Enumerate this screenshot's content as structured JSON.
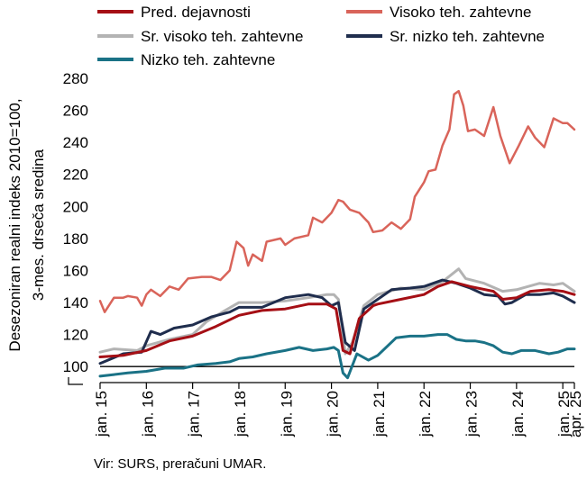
{
  "chart_data": {
    "type": "line",
    "ylabel_lines": [
      "Desezoniran realni indeks 2010=100,",
      "3-mes. drseča sredina"
    ],
    "ylim": [
      90,
      280
    ],
    "yticks": [
      100,
      120,
      140,
      160,
      180,
      200,
      220,
      240,
      260,
      280
    ],
    "x_start": 2015.0,
    "x_end": 2025.25,
    "xticks": [
      {
        "t": 2015,
        "label": "jan. 15"
      },
      {
        "t": 2016,
        "label": "jan. 16"
      },
      {
        "t": 2017,
        "label": "jan. 17"
      },
      {
        "t": 2018,
        "label": "jan. 18"
      },
      {
        "t": 2019,
        "label": "jan. 19"
      },
      {
        "t": 2020,
        "label": "jan. 20"
      },
      {
        "t": 2021,
        "label": "jan. 21"
      },
      {
        "t": 2022,
        "label": "jan. 22"
      },
      {
        "t": 2023,
        "label": "jan. 23"
      },
      {
        "t": 2024,
        "label": "jan. 24"
      },
      {
        "t": 2025,
        "label": "jan. 25"
      },
      {
        "t": 2025.25,
        "label": "apr. 25"
      }
    ],
    "reference_line": 100,
    "legend_position": "top",
    "series": [
      {
        "name": "Pred. dejavnosti",
        "color": "#a50f15",
        "width": 3,
        "points": [
          [
            2015.0,
            106
          ],
          [
            2015.5,
            107
          ],
          [
            2016.0,
            110
          ],
          [
            2016.5,
            116
          ],
          [
            2017.0,
            119
          ],
          [
            2017.5,
            125
          ],
          [
            2018.0,
            132
          ],
          [
            2018.5,
            135
          ],
          [
            2019.0,
            136
          ],
          [
            2019.5,
            139
          ],
          [
            2019.9,
            139
          ],
          [
            2020.1,
            136
          ],
          [
            2020.25,
            110
          ],
          [
            2020.4,
            108
          ],
          [
            2020.6,
            130
          ],
          [
            2020.9,
            138
          ],
          [
            2021.0,
            139
          ],
          [
            2021.5,
            142
          ],
          [
            2022.0,
            145
          ],
          [
            2022.3,
            150
          ],
          [
            2022.6,
            153
          ],
          [
            2023.0,
            150
          ],
          [
            2023.5,
            147
          ],
          [
            2023.7,
            142
          ],
          [
            2024.0,
            143
          ],
          [
            2024.3,
            147
          ],
          [
            2024.7,
            148
          ],
          [
            2025.0,
            147
          ],
          [
            2025.25,
            145
          ]
        ]
      },
      {
        "name": "Visoko teh. zahtevne",
        "color": "#d9645a",
        "width": 2.5,
        "points": [
          [
            2015.0,
            141
          ],
          [
            2015.1,
            134
          ],
          [
            2015.3,
            143
          ],
          [
            2015.5,
            143
          ],
          [
            2015.6,
            144
          ],
          [
            2015.8,
            143
          ],
          [
            2015.9,
            138
          ],
          [
            2016.0,
            145
          ],
          [
            2016.1,
            148
          ],
          [
            2016.3,
            144
          ],
          [
            2016.5,
            150
          ],
          [
            2016.7,
            148
          ],
          [
            2016.9,
            155
          ],
          [
            2017.2,
            156
          ],
          [
            2017.4,
            156
          ],
          [
            2017.6,
            154
          ],
          [
            2017.8,
            160
          ],
          [
            2017.95,
            178
          ],
          [
            2018.1,
            174
          ],
          [
            2018.2,
            163
          ],
          [
            2018.3,
            170
          ],
          [
            2018.5,
            166
          ],
          [
            2018.6,
            178
          ],
          [
            2018.9,
            180
          ],
          [
            2019.0,
            176
          ],
          [
            2019.2,
            180
          ],
          [
            2019.5,
            182
          ],
          [
            2019.6,
            193
          ],
          [
            2019.8,
            190
          ],
          [
            2020.0,
            196
          ],
          [
            2020.15,
            204
          ],
          [
            2020.25,
            203
          ],
          [
            2020.4,
            198
          ],
          [
            2020.6,
            196
          ],
          [
            2020.8,
            190
          ],
          [
            2020.9,
            184
          ],
          [
            2021.1,
            185
          ],
          [
            2021.3,
            190
          ],
          [
            2021.5,
            186
          ],
          [
            2021.7,
            192
          ],
          [
            2021.8,
            206
          ],
          [
            2022.0,
            215
          ],
          [
            2022.1,
            222
          ],
          [
            2022.25,
            223
          ],
          [
            2022.4,
            238
          ],
          [
            2022.55,
            248
          ],
          [
            2022.65,
            270
          ],
          [
            2022.75,
            272
          ],
          [
            2022.85,
            263
          ],
          [
            2022.95,
            247
          ],
          [
            2023.1,
            248
          ],
          [
            2023.3,
            244
          ],
          [
            2023.5,
            262
          ],
          [
            2023.65,
            244
          ],
          [
            2023.85,
            227
          ],
          [
            2024.05,
            238
          ],
          [
            2024.25,
            250
          ],
          [
            2024.4,
            243
          ],
          [
            2024.6,
            237
          ],
          [
            2024.8,
            255
          ],
          [
            2025.0,
            252
          ],
          [
            2025.1,
            252
          ],
          [
            2025.25,
            248
          ]
        ]
      },
      {
        "name": "Sr. visoko teh. zahtevne",
        "color": "#b3b3b3",
        "width": 3,
        "points": [
          [
            2015.0,
            109
          ],
          [
            2015.3,
            111
          ],
          [
            2015.8,
            110
          ],
          [
            2016.0,
            113
          ],
          [
            2016.5,
            117
          ],
          [
            2017.0,
            120
          ],
          [
            2017.3,
            128
          ],
          [
            2017.7,
            135
          ],
          [
            2018.0,
            140
          ],
          [
            2018.5,
            140
          ],
          [
            2019.0,
            141
          ],
          [
            2019.5,
            143
          ],
          [
            2019.9,
            145
          ],
          [
            2020.05,
            145
          ],
          [
            2020.15,
            142
          ],
          [
            2020.3,
            108
          ],
          [
            2020.45,
            115
          ],
          [
            2020.7,
            138
          ],
          [
            2021.0,
            145
          ],
          [
            2021.5,
            149
          ],
          [
            2022.0,
            148
          ],
          [
            2022.4,
            153
          ],
          [
            2022.75,
            161
          ],
          [
            2022.9,
            155
          ],
          [
            2023.3,
            152
          ],
          [
            2023.7,
            147
          ],
          [
            2024.0,
            148
          ],
          [
            2024.5,
            152
          ],
          [
            2024.8,
            151
          ],
          [
            2025.0,
            152
          ],
          [
            2025.25,
            147
          ]
        ]
      },
      {
        "name": "Sr. nizko teh. zahtevne",
        "color": "#1f2d4d",
        "width": 3,
        "points": [
          [
            2015.0,
            102
          ],
          [
            2015.5,
            108
          ],
          [
            2015.9,
            109
          ],
          [
            2016.1,
            122
          ],
          [
            2016.3,
            120
          ],
          [
            2016.6,
            124
          ],
          [
            2017.0,
            126
          ],
          [
            2017.4,
            131
          ],
          [
            2017.8,
            134
          ],
          [
            2018.0,
            137
          ],
          [
            2018.5,
            137
          ],
          [
            2019.0,
            143
          ],
          [
            2019.5,
            145
          ],
          [
            2019.8,
            143
          ],
          [
            2020.0,
            138
          ],
          [
            2020.15,
            140
          ],
          [
            2020.3,
            115
          ],
          [
            2020.5,
            110
          ],
          [
            2020.7,
            136
          ],
          [
            2021.0,
            142
          ],
          [
            2021.3,
            148
          ],
          [
            2021.7,
            149
          ],
          [
            2022.0,
            150
          ],
          [
            2022.4,
            154
          ],
          [
            2022.7,
            152
          ],
          [
            2023.0,
            149
          ],
          [
            2023.3,
            145
          ],
          [
            2023.6,
            144
          ],
          [
            2023.75,
            139
          ],
          [
            2023.9,
            140
          ],
          [
            2024.2,
            145
          ],
          [
            2024.5,
            145
          ],
          [
            2024.8,
            146
          ],
          [
            2025.0,
            144
          ],
          [
            2025.25,
            140
          ]
        ]
      },
      {
        "name": "Nizko teh. zahtevne",
        "color": "#1a7286",
        "width": 3,
        "points": [
          [
            2015.0,
            94
          ],
          [
            2015.3,
            95
          ],
          [
            2015.6,
            96
          ],
          [
            2016.0,
            97
          ],
          [
            2016.4,
            99
          ],
          [
            2016.8,
            99
          ],
          [
            2017.1,
            101
          ],
          [
            2017.5,
            102
          ],
          [
            2017.8,
            103
          ],
          [
            2018.0,
            105
          ],
          [
            2018.3,
            106
          ],
          [
            2018.6,
            108
          ],
          [
            2019.0,
            110
          ],
          [
            2019.3,
            112
          ],
          [
            2019.6,
            110
          ],
          [
            2019.9,
            111
          ],
          [
            2020.05,
            112
          ],
          [
            2020.15,
            110
          ],
          [
            2020.25,
            96
          ],
          [
            2020.35,
            93
          ],
          [
            2020.55,
            108
          ],
          [
            2020.8,
            104
          ],
          [
            2021.0,
            107
          ],
          [
            2021.4,
            118
          ],
          [
            2021.7,
            119
          ],
          [
            2022.0,
            119
          ],
          [
            2022.3,
            120
          ],
          [
            2022.5,
            120
          ],
          [
            2022.7,
            117
          ],
          [
            2022.9,
            116
          ],
          [
            2023.1,
            116
          ],
          [
            2023.3,
            115
          ],
          [
            2023.5,
            113
          ],
          [
            2023.7,
            109
          ],
          [
            2023.9,
            108
          ],
          [
            2024.1,
            110
          ],
          [
            2024.4,
            110
          ],
          [
            2024.7,
            108
          ],
          [
            2024.9,
            109
          ],
          [
            2025.1,
            111
          ],
          [
            2025.25,
            111
          ]
        ]
      }
    ]
  },
  "source_text": "Vir: SURS, preračuni UMAR."
}
